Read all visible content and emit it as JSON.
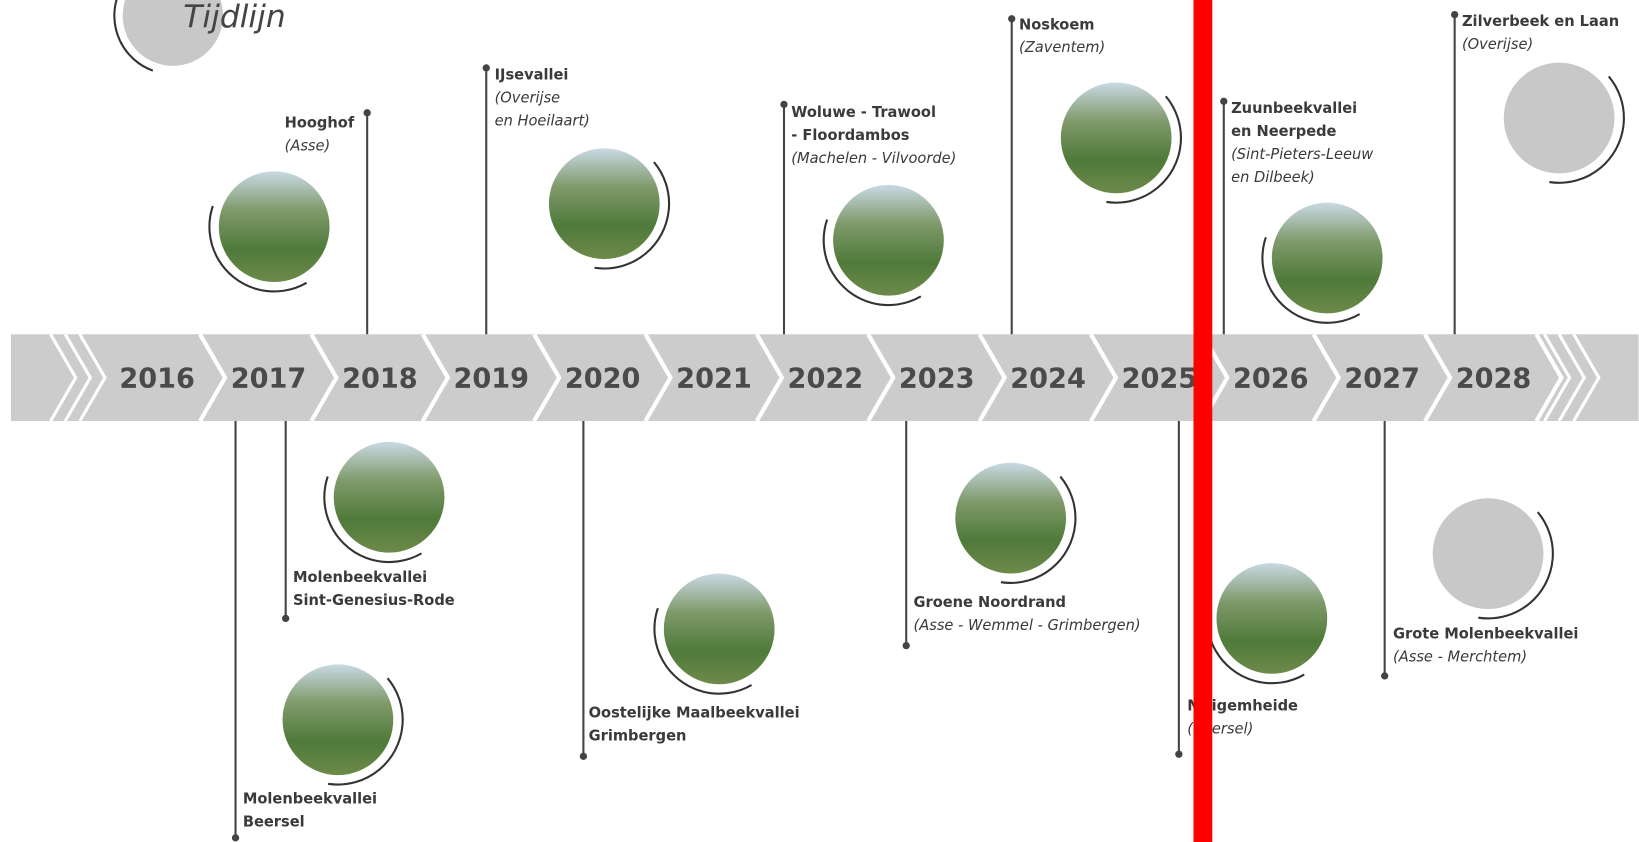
{
  "title": "Tijdlijn",
  "years": [
    "2016",
    "2017",
    "2018",
    "2019",
    "2020",
    "2021",
    "2022",
    "2023",
    "2024",
    "2025",
    "2026",
    "2027",
    "2028"
  ],
  "projects": [
    {
      "name_lines": [
        "Hooghof"
      ],
      "location_lines": [
        "(Asse)"
      ]
    },
    {
      "name_lines": [
        "IJsevallei"
      ],
      "location_lines": [
        "(Overijse",
        "en Hoeilaart)"
      ]
    },
    {
      "name_lines": [
        "Woluwe - Trawool",
        "- Floordambos"
      ],
      "location_lines": [
        "(Machelen - Vilvoorde)"
      ]
    },
    {
      "name_lines": [
        "Noskoem"
      ],
      "location_lines": [
        "(Zaventem)"
      ]
    },
    {
      "name_lines": [
        "Zuunbeekvallei",
        "en Neerpede"
      ],
      "location_lines": [
        "(Sint-Pieters-Leeuw",
        "en Dilbeek)"
      ]
    },
    {
      "name_lines": [
        "Zilverbeek en Laan"
      ],
      "location_lines": [
        "(Overijse)"
      ]
    },
    {
      "name_lines": [
        "Molenbeekvallei",
        "Sint-Genesius-Rode"
      ],
      "location_lines": []
    },
    {
      "name_lines": [
        "Molenbeekvallei",
        "Beersel"
      ],
      "location_lines": []
    },
    {
      "name_lines": [
        "Oostelijke Maalbeekvallei",
        "Grimbergen"
      ],
      "location_lines": []
    },
    {
      "name_lines": [
        "Groene Noordrand"
      ],
      "location_lines": [
        "(Asse - Wemmel - Grimbergen)"
      ]
    },
    {
      "name_lines": [
        "Meigemheide"
      ],
      "location_lines": [
        "(Beersel)"
      ]
    },
    {
      "name_lines": [
        "Grote Molenbeekvallei"
      ],
      "location_lines": [
        "(Asse - Merchtem)"
      ]
    }
  ]
}
